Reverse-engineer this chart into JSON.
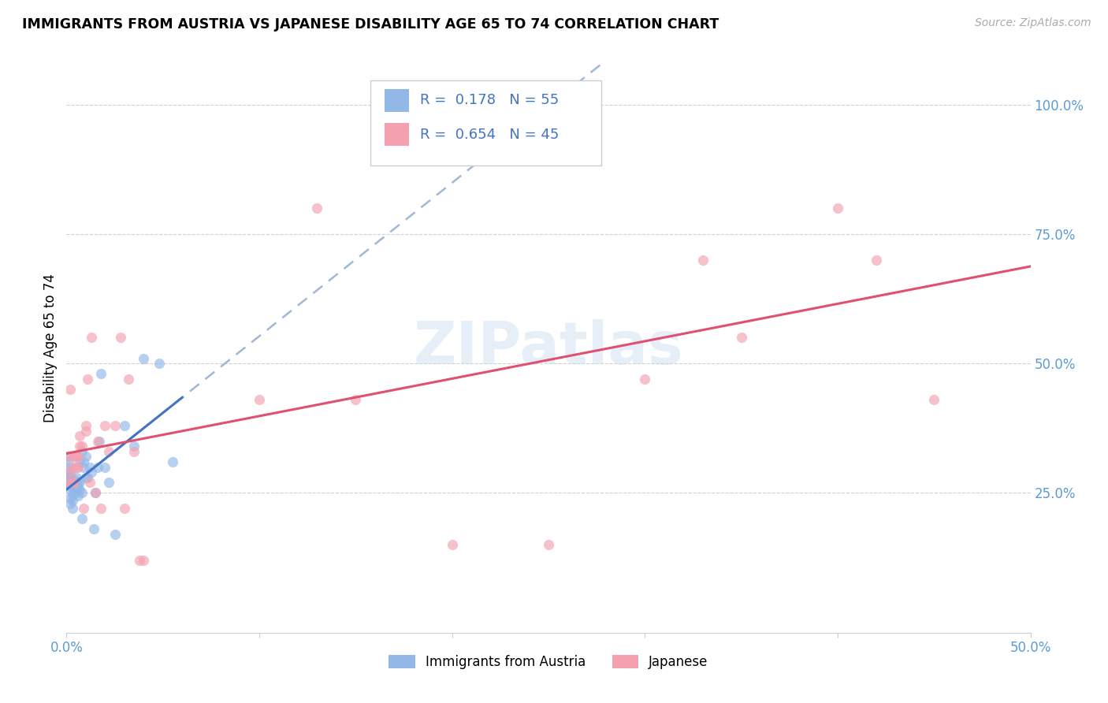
{
  "title": "IMMIGRANTS FROM AUSTRIA VS JAPANESE DISABILITY AGE 65 TO 74 CORRELATION CHART",
  "source": "Source: ZipAtlas.com",
  "ylabel": "Disability Age 65 to 74",
  "legend_label1": "Immigrants from Austria",
  "legend_label2": "Japanese",
  "legend_r1": "R =  0.178",
  "legend_n1": "N = 55",
  "legend_r2": "R =  0.654",
  "legend_n2": "N = 45",
  "blue_color": "#92b8e8",
  "pink_color": "#f4a0b0",
  "blue_line_color": "#4472c4",
  "pink_line_color": "#e05070",
  "dashed_line_color": "#a0b8d8",
  "watermark": "ZIPatlas",
  "blue_x": [
    0.001,
    0.001,
    0.001,
    0.001,
    0.001,
    0.001,
    0.001,
    0.002,
    0.002,
    0.002,
    0.002,
    0.002,
    0.002,
    0.002,
    0.003,
    0.003,
    0.003,
    0.003,
    0.003,
    0.004,
    0.004,
    0.004,
    0.005,
    0.005,
    0.005,
    0.005,
    0.006,
    0.006,
    0.006,
    0.007,
    0.007,
    0.007,
    0.008,
    0.008,
    0.008,
    0.009,
    0.009,
    0.01,
    0.01,
    0.011,
    0.012,
    0.013,
    0.014,
    0.015,
    0.016,
    0.017,
    0.018,
    0.02,
    0.022,
    0.025,
    0.03,
    0.035,
    0.04,
    0.048,
    0.055
  ],
  "blue_y": [
    0.27,
    0.275,
    0.28,
    0.29,
    0.3,
    0.31,
    0.32,
    0.23,
    0.24,
    0.255,
    0.265,
    0.27,
    0.28,
    0.29,
    0.22,
    0.235,
    0.245,
    0.26,
    0.27,
    0.255,
    0.265,
    0.275,
    0.25,
    0.26,
    0.27,
    0.28,
    0.245,
    0.26,
    0.27,
    0.255,
    0.27,
    0.31,
    0.2,
    0.25,
    0.33,
    0.3,
    0.31,
    0.28,
    0.32,
    0.28,
    0.3,
    0.29,
    0.18,
    0.25,
    0.3,
    0.35,
    0.48,
    0.3,
    0.27,
    0.17,
    0.38,
    0.34,
    0.51,
    0.5,
    0.31
  ],
  "pink_x": [
    0.001,
    0.001,
    0.002,
    0.002,
    0.003,
    0.003,
    0.004,
    0.004,
    0.005,
    0.005,
    0.006,
    0.006,
    0.007,
    0.007,
    0.008,
    0.009,
    0.01,
    0.01,
    0.011,
    0.012,
    0.013,
    0.015,
    0.016,
    0.018,
    0.02,
    0.022,
    0.025,
    0.028,
    0.03,
    0.032,
    0.035,
    0.038,
    0.04,
    0.1,
    0.13,
    0.15,
    0.18,
    0.2,
    0.25,
    0.3,
    0.33,
    0.35,
    0.4,
    0.42,
    0.45
  ],
  "pink_y": [
    0.27,
    0.32,
    0.29,
    0.45,
    0.27,
    0.3,
    0.27,
    0.32,
    0.3,
    0.32,
    0.3,
    0.32,
    0.34,
    0.36,
    0.34,
    0.22,
    0.37,
    0.38,
    0.47,
    0.27,
    0.55,
    0.25,
    0.35,
    0.22,
    0.38,
    0.33,
    0.38,
    0.55,
    0.22,
    0.47,
    0.33,
    0.12,
    0.12,
    0.43,
    0.8,
    0.43,
    1.0,
    0.15,
    0.15,
    0.47,
    0.7,
    0.55,
    0.8,
    0.7,
    0.43
  ],
  "xlim": [
    0.0,
    0.5
  ],
  "ylim": [
    -0.02,
    1.08
  ],
  "xtick_positions": [
    0.0,
    0.1,
    0.2,
    0.3,
    0.4,
    0.5
  ],
  "xtick_labels_show": [
    "0.0%",
    "",
    "",
    "",
    "",
    "50.0%"
  ],
  "ytick_right_positions": [
    0.0,
    0.25,
    0.5,
    0.75,
    1.0
  ],
  "ytick_right_labels": [
    "",
    "25.0%",
    "50.0%",
    "75.0%",
    "100.0%"
  ]
}
